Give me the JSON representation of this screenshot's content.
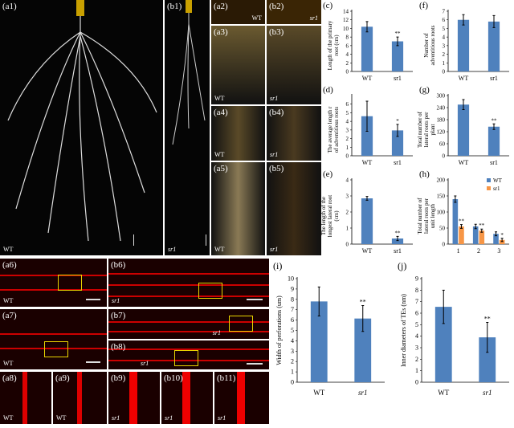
{
  "panels": {
    "a1": {
      "label": "(a1)",
      "genotype": "WT"
    },
    "b1": {
      "label": "(b1)",
      "genotype": "sr1"
    },
    "a2": {
      "label": "(a2)",
      "genotype": "WT"
    },
    "b2": {
      "label": "(b2)",
      "genotype": "sr1"
    },
    "a3": {
      "label": "(a3)",
      "genotype": "WT"
    },
    "b3": {
      "label": "(b3)",
      "genotype": "sr1"
    },
    "a4": {
      "label": "(a4)",
      "genotype": "WT"
    },
    "b4": {
      "label": "(b4)",
      "genotype": "sr1"
    },
    "a5": {
      "label": "(a5)",
      "genotype": "WT"
    },
    "b5": {
      "label": "(b5)",
      "genotype": "sr1"
    },
    "a6": {
      "label": "(a6)",
      "genotype": "WT"
    },
    "b6": {
      "label": "(b6)",
      "genotype": "sr1"
    },
    "a7": {
      "label": "(a7)",
      "genotype": "WT"
    },
    "b7": {
      "label": "(b7)",
      "genotype": "sr1"
    },
    "b8": {
      "label": "(b8)",
      "genotype": "sr1"
    },
    "a8": {
      "label": "(a8)",
      "genotype": "WT"
    },
    "a9": {
      "label": "(a9)",
      "genotype": "WT"
    },
    "b9": {
      "label": "(b9)",
      "genotype": "sr1"
    },
    "b10": {
      "label": "(b10)",
      "genotype": "sr1"
    },
    "b11": {
      "label": "(b11)",
      "genotype": "sr1"
    }
  },
  "colors": {
    "WT": "#4f81bd",
    "sr1": "#f79646"
  },
  "chart_data": [
    {
      "panel": "(c)",
      "type": "bar",
      "categories": [
        "WT",
        "sr1"
      ],
      "values": [
        10.4,
        7.0
      ],
      "errors": [
        1.2,
        1.0
      ],
      "significance": [
        "",
        "**"
      ],
      "ylabel": "Length of the primary root (cm)",
      "ylim": [
        0,
        14
      ],
      "yticks": [
        0,
        2,
        4,
        6,
        8,
        10,
        12,
        14
      ]
    },
    {
      "panel": "(f)",
      "type": "bar",
      "categories": [
        "WT",
        "sr1"
      ],
      "values": [
        6.0,
        5.8
      ],
      "errors": [
        0.6,
        0.7
      ],
      "significance": [
        "",
        ""
      ],
      "ylabel": "Number of adventitious roots",
      "ylim": [
        0,
        7
      ],
      "yticks": [
        0,
        1,
        2,
        3,
        4,
        5,
        6,
        7
      ]
    },
    {
      "panel": "(d)",
      "type": "bar",
      "categories": [
        "WT",
        "sr1"
      ],
      "values": [
        4.6,
        2.95
      ],
      "errors": [
        1.75,
        0.7
      ],
      "significance": [
        "",
        "*"
      ],
      "ylabel": "The average length r of adventitious roots",
      "ylim": [
        0,
        7
      ],
      "yticks": [
        0,
        1,
        2,
        3,
        4,
        5,
        6
      ]
    },
    {
      "panel": "(g)",
      "type": "bar",
      "categories": [
        "WT",
        "sr1"
      ],
      "values": [
        255,
        145
      ],
      "errors": [
        25,
        14
      ],
      "significance": [
        "",
        "**"
      ],
      "ylabel": "Total number of lateral roots per plant",
      "ylim": [
        0,
        300
      ],
      "yticks": [
        0,
        60,
        120,
        180,
        240,
        300
      ]
    },
    {
      "panel": "(e)",
      "type": "bar",
      "categories": [
        "WT",
        "sr1"
      ],
      "values": [
        2.85,
        0.35
      ],
      "errors": [
        0.12,
        0.13
      ],
      "significance": [
        "",
        "**"
      ],
      "ylabel": "The length of the longest lateral root (cm)",
      "ylim": [
        0,
        4
      ],
      "yticks": [
        0,
        1,
        2,
        3,
        4
      ]
    },
    {
      "panel": "(h)",
      "type": "bar",
      "categories": [
        "1",
        "2",
        "3"
      ],
      "series": [
        {
          "name": "WT",
          "values": [
            140,
            55,
            32
          ],
          "errors": [
            10,
            7,
            6
          ],
          "significance": [
            "",
            "",
            ""
          ]
        },
        {
          "name": "sr1",
          "values": [
            55,
            42,
            13
          ],
          "errors": [
            6,
            5,
            5
          ],
          "significance": [
            "**",
            "**",
            "*"
          ]
        }
      ],
      "ylabel": "Total number of lateral roots per unit length",
      "ylim": [
        0,
        200
      ],
      "yticks": [
        0,
        50,
        100,
        150,
        200
      ],
      "legend": "top-right"
    },
    {
      "panel": "(i)",
      "type": "bar",
      "categories": [
        "WT",
        "sr1"
      ],
      "values": [
        7.8,
        6.15
      ],
      "errors": [
        1.4,
        1.25
      ],
      "significance": [
        "",
        "**"
      ],
      "ylabel": "Width of perforations (um)",
      "ylim": [
        0,
        10
      ],
      "yticks": [
        0,
        1,
        2,
        3,
        4,
        5,
        6,
        7,
        8,
        9,
        10
      ]
    },
    {
      "panel": "(j)",
      "type": "bar",
      "categories": [
        "WT",
        "sr1"
      ],
      "values": [
        6.55,
        3.9
      ],
      "errors": [
        1.45,
        1.3
      ],
      "significance": [
        "",
        "**"
      ],
      "ylabel": "Inner diameters of TEs (nm)",
      "ylim": [
        0,
        9
      ],
      "yticks": [
        0,
        1,
        2,
        3,
        4,
        5,
        6,
        7,
        8,
        9
      ]
    }
  ]
}
